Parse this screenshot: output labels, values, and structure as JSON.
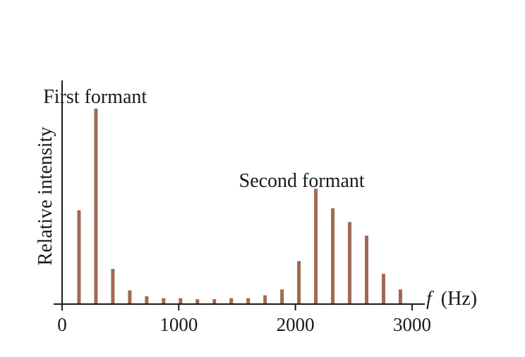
{
  "chart_data": {
    "type": "bar",
    "ylabel": "Relative intensity",
    "xlabel_italic": "f",
    "xlabel_unit": "(Hz)",
    "xlim": [
      0,
      3000
    ],
    "ylim": [
      0,
      1.0
    ],
    "xticks": [
      0,
      1000,
      2000,
      3000
    ],
    "xtick_labels": [
      "0",
      "1000",
      "2000",
      "3000"
    ],
    "grid": false,
    "bar_color": "#a06a52",
    "x": [
      145,
      290,
      435,
      580,
      725,
      870,
      1015,
      1160,
      1305,
      1450,
      1595,
      1740,
      1885,
      2030,
      2175,
      2320,
      2465,
      2610,
      2755,
      2900
    ],
    "values": [
      0.48,
      1.0,
      0.18,
      0.07,
      0.04,
      0.03,
      0.03,
      0.025,
      0.025,
      0.03,
      0.03,
      0.045,
      0.075,
      0.22,
      0.59,
      0.49,
      0.42,
      0.35,
      0.155,
      0.075
    ],
    "annotations": [
      {
        "text": "First formant",
        "x": 80,
        "y": 1.02
      },
      {
        "text": "Second formant",
        "x": 2030,
        "y": 0.62
      }
    ]
  }
}
